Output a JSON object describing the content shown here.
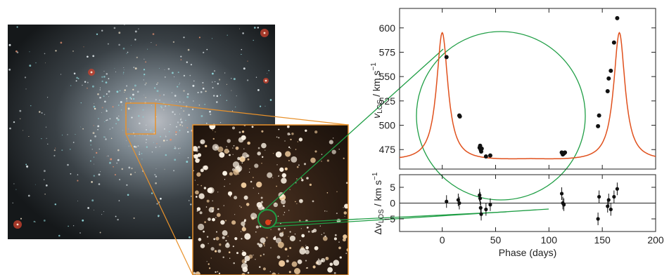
{
  "chart_data": [
    {
      "type": "scatter",
      "panel": "top",
      "ylabel": "v_LOS / km s^-1",
      "ylabel_parts": {
        "main": "v",
        "sub": "LOS",
        "unit": " / km s",
        "sup": "−1"
      },
      "xlim": [
        -40,
        200
      ],
      "ylim": [
        455,
        620
      ],
      "xticks": [
        0,
        50,
        100,
        150,
        200
      ],
      "yticks": [
        475,
        500,
        525,
        550,
        575,
        600
      ],
      "ytick_labels": [
        "475",
        "500",
        "525",
        "550",
        "575",
        "600"
      ],
      "points": [
        {
          "x": 4,
          "y": 570
        },
        {
          "x": 16,
          "y": 510
        },
        {
          "x": 16.5,
          "y": 509
        },
        {
          "x": 35,
          "y": 477
        },
        {
          "x": 35.5,
          "y": 479
        },
        {
          "x": 36,
          "y": 475
        },
        {
          "x": 36.5,
          "y": 473
        },
        {
          "x": 37,
          "y": 476
        },
        {
          "x": 41,
          "y": 468
        },
        {
          "x": 45,
          "y": 469
        },
        {
          "x": 112,
          "y": 472
        },
        {
          "x": 113,
          "y": 470
        },
        {
          "x": 114,
          "y": 471
        },
        {
          "x": 115,
          "y": 472
        },
        {
          "x": 146,
          "y": 499
        },
        {
          "x": 147,
          "y": 510
        },
        {
          "x": 155,
          "y": 535
        },
        {
          "x": 156,
          "y": 548
        },
        {
          "x": 158,
          "y": 556
        },
        {
          "x": 161,
          "y": 585
        },
        {
          "x": 164,
          "y": 610
        }
      ],
      "model": {
        "color": "#e0501c",
        "period": 166,
        "peak_phase": 0,
        "peak_v": 605,
        "min_v": 463
      }
    },
    {
      "type": "scatter",
      "panel": "bottom",
      "ylabel": "Δv_LOS / km s^-1",
      "ylabel_parts": {
        "main": "Δv",
        "sub": "LOS",
        "unit": " / km s",
        "sup": "−1"
      },
      "xlabel": "Phase (days)",
      "xlim": [
        -40,
        200
      ],
      "ylim": [
        -9,
        9
      ],
      "xticks": [
        0,
        50,
        100,
        150,
        200
      ],
      "xtick_labels": [
        "0",
        "50",
        "100",
        "150",
        "200"
      ],
      "yticks": [
        -5,
        0,
        5
      ],
      "ytick_labels": [
        "−5",
        "0",
        "5"
      ],
      "points": [
        {
          "x": 4,
          "y": 0.5,
          "err": 2
        },
        {
          "x": 15,
          "y": 1,
          "err": 2
        },
        {
          "x": 16,
          "y": 0,
          "err": 2
        },
        {
          "x": 35,
          "y": 2.5,
          "err": 2
        },
        {
          "x": 35.5,
          "y": 1.5,
          "err": 2
        },
        {
          "x": 36,
          "y": -1.5,
          "err": 2
        },
        {
          "x": 36.5,
          "y": -3.5,
          "err": 2
        },
        {
          "x": 41,
          "y": -2,
          "err": 2
        },
        {
          "x": 45,
          "y": -0.5,
          "err": 2
        },
        {
          "x": 112,
          "y": 3,
          "err": 2
        },
        {
          "x": 113,
          "y": 0,
          "err": 2
        },
        {
          "x": 114,
          "y": -0.5,
          "err": 2
        },
        {
          "x": 146,
          "y": -5,
          "err": 2
        },
        {
          "x": 147,
          "y": 2,
          "err": 2
        },
        {
          "x": 155,
          "y": -1,
          "err": 2
        },
        {
          "x": 156,
          "y": 1,
          "err": 2
        },
        {
          "x": 158,
          "y": -2,
          "err": 2
        },
        {
          "x": 161,
          "y": 2,
          "err": 2
        },
        {
          "x": 164,
          "y": 4.5,
          "err": 2
        }
      ],
      "zero_line": true
    }
  ],
  "colors": {
    "model_curve": "#e0501c",
    "zoom_box": "#e8912b",
    "callout": "#1f9e45",
    "points": "#111111",
    "marker": "#e0401a"
  },
  "images": {
    "cluster": "globular star cluster photograph",
    "inset": "zoomed star field inset with marked star"
  }
}
